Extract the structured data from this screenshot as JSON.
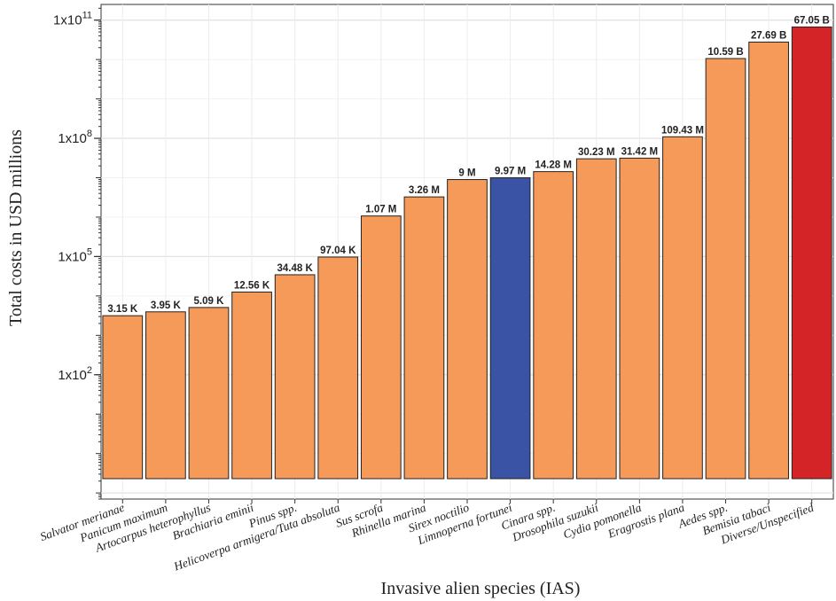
{
  "chart_data": {
    "type": "bar",
    "xlabel": "Invasive alien species (IAS)",
    "ylabel": "Total costs in USD millions",
    "yscale": "log",
    "ylim": [
      0.07,
      250000000000
    ],
    "grid": true,
    "legend": "none",
    "categories": [
      "Salvator merianae",
      "Panicum maximum",
      "Artocarpus heterophyllus",
      "Brachiaria eminii",
      "Pinus spp.",
      "Helicoverpa armigera/Tuta absoluta",
      "Sus scrofa",
      "Rhinella marina",
      "Sirex noctilio",
      "Limnoperna fortunei",
      "Cinara spp.",
      "Drosophila suzukii",
      "Cydia pomonella",
      "Eragrostis plana",
      "Aedes spp.",
      "Bemisia tabaci",
      "Diverse/Unspecified"
    ],
    "values": [
      3150,
      3950,
      5090,
      12560,
      34480,
      97040,
      1070000,
      3260000,
      9000000,
      9970000,
      14280000,
      30230000,
      31420000,
      109430000,
      10590000000,
      27690000000,
      67050000000
    ],
    "value_labels": [
      "3.15 K",
      "3.95 K",
      "5.09 K",
      "12.56 K",
      "34.48 K",
      "97.04 K",
      "1.07 M",
      "3.26 M",
      "9 M",
      "9.97 M",
      "14.28 M",
      "30.23 M",
      "31.42 M",
      "109.43 M",
      "10.59 B",
      "27.69 B",
      "67.05 B"
    ],
    "bar_colors": [
      "#F59A58",
      "#F59A58",
      "#F59A58",
      "#F59A58",
      "#F59A58",
      "#F59A58",
      "#F59A58",
      "#F59A58",
      "#F59A58",
      "#3A53A4",
      "#F59A58",
      "#F59A58",
      "#F59A58",
      "#F59A58",
      "#F59A58",
      "#F59A58",
      "#D42428"
    ],
    "yticks": [
      {
        "value": 100,
        "base": "1x10",
        "exp": "2"
      },
      {
        "value": 100000,
        "base": "1x10",
        "exp": "5"
      },
      {
        "value": 100000000,
        "base": "1x10",
        "exp": "8"
      },
      {
        "value": 100000000000,
        "base": "1x10",
        "exp": "11"
      }
    ]
  }
}
